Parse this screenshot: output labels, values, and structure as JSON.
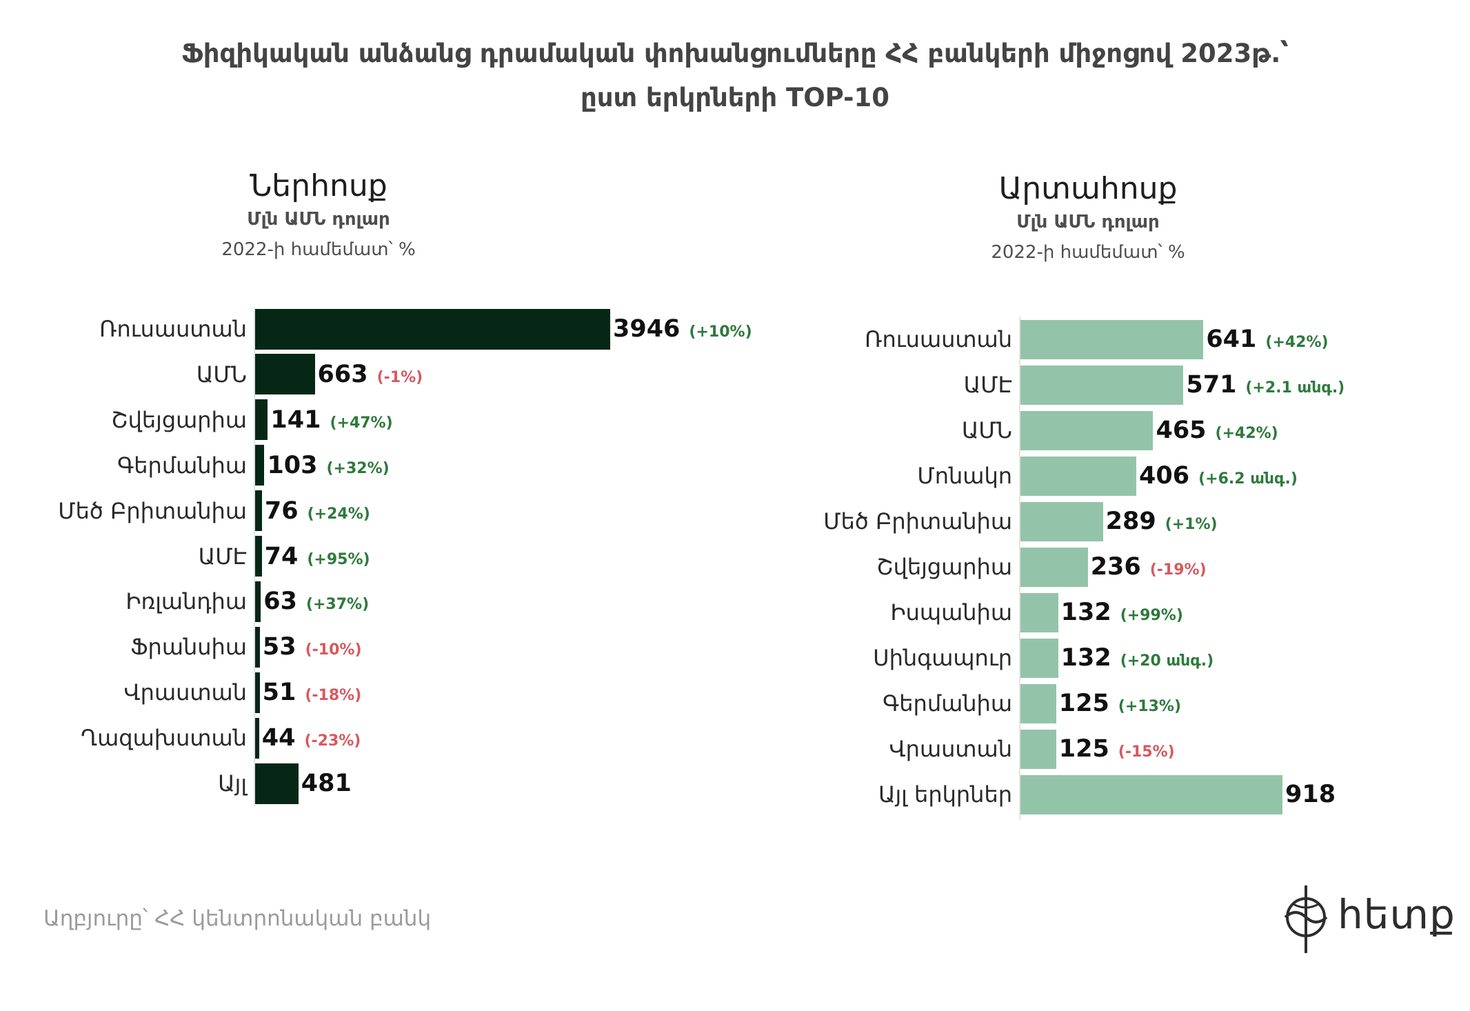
{
  "title": {
    "line1": "Ֆիզիկական անձանց դրամական փոխանցումները ՀՀ բանկերի միջոցով 2023թ.՝",
    "line2": "ըստ երկրների TOP-10"
  },
  "source": "Աղբյուրը՝ ՀՀ կենտրոնական բանկ",
  "logo": {
    "text": "հետք",
    "icon": "crosshair-globe-icon"
  },
  "colors": {
    "positive": "#2e7a3c",
    "negative": "#d65a5f",
    "title": "#444444",
    "source": "#9b9b9b"
  },
  "chart_data": [
    {
      "type": "bar",
      "orientation": "horizontal",
      "title": "Ներհոսք",
      "subtitle": "Մլն ԱՄՆ դոլար",
      "note": "2022-ի համեմատ՝ %",
      "bar_color": "#062716",
      "xlim": [
        0,
        3946
      ],
      "categories": [
        "Ռուսաստան",
        "ԱՄՆ",
        "Շվեյցարիա",
        "Գերմանիա",
        "Մեծ Բրիտանիա",
        "ԱՄԷ",
        "Իռլանդիա",
        "Ֆրանսիա",
        "Վրաստան",
        "Ղազախստան",
        "Այլ"
      ],
      "values": [
        3946,
        663,
        141,
        103,
        76,
        74,
        63,
        53,
        51,
        44,
        481
      ],
      "changes": [
        "(+10%)",
        "(-1%)",
        "(+47%)",
        "(+32%)",
        "(+24%)",
        "(+95%)",
        "(+37%)",
        "(-10%)",
        "(-18%)",
        "(-23%)",
        ""
      ]
    },
    {
      "type": "bar",
      "orientation": "horizontal",
      "title": "Արտահոսք",
      "subtitle": "Մլն ԱՄՆ դոլար",
      "note": "2022-ի համեմատ՝ %",
      "bar_color": "#93c4a9",
      "xlim": [
        0,
        918
      ],
      "categories": [
        "Ռուսաստան",
        "ԱՄԷ",
        "ԱՄՆ",
        "Մոնակո",
        "Մեծ Բրիտանիա",
        "Շվեյցարիա",
        "Իսպանիա",
        "Սինգապուր",
        "Գերմանիա",
        "Վրաստան",
        "Այլ երկրներ"
      ],
      "values": [
        641,
        571,
        465,
        406,
        289,
        236,
        132,
        132,
        125,
        125,
        918
      ],
      "changes": [
        "(+42%)",
        "(+2.1 անգ.)",
        "(+42%)",
        "(+6.2 անգ.)",
        "(+1%)",
        "(-19%)",
        "(+99%)",
        "(+20 անգ.)",
        "(+13%)",
        "(-15%)",
        ""
      ]
    }
  ]
}
